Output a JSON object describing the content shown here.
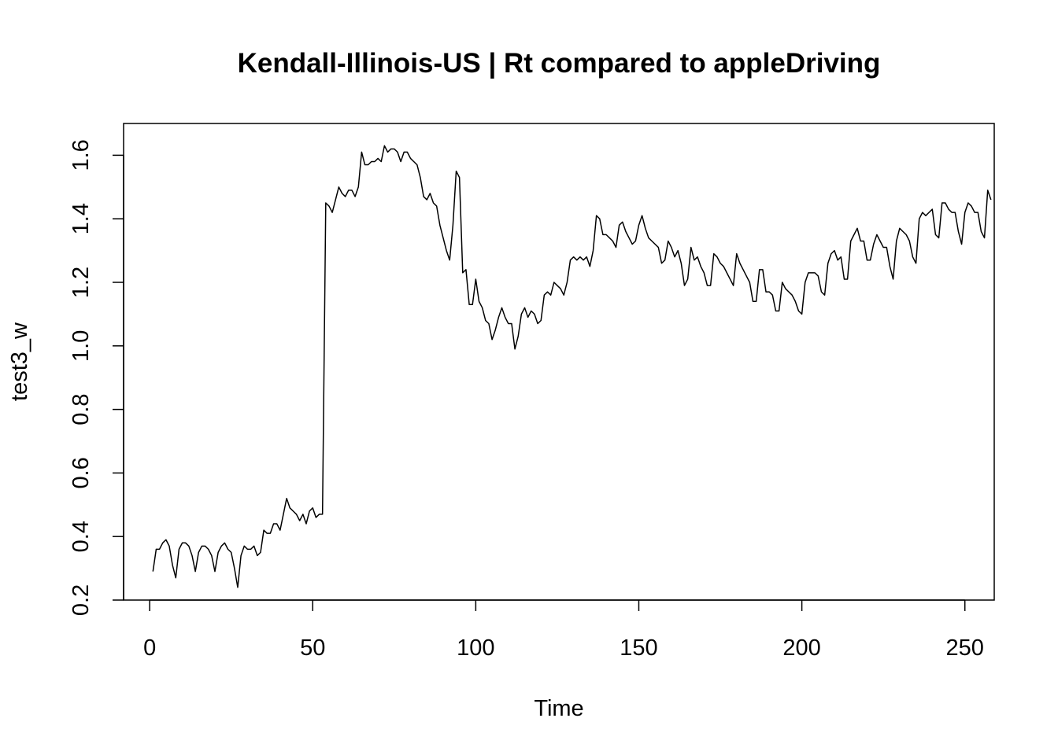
{
  "chart_data": {
    "type": "line",
    "title": "Kendall-Illinois-US | Rt compared to appleDriving",
    "xlabel": "Time",
    "ylabel": "test3_w",
    "xlim": [
      -8,
      259
    ],
    "ylim": [
      0.2,
      1.7
    ],
    "x_ticks": [
      0,
      50,
      100,
      150,
      200,
      250
    ],
    "x_tick_labels": [
      "0",
      "50",
      "100",
      "150",
      "200",
      "250"
    ],
    "y_ticks": [
      0.2,
      0.4,
      0.6,
      0.8,
      1.0,
      1.2,
      1.4,
      1.6
    ],
    "y_tick_labels": [
      "0.2",
      "0.4",
      "0.6",
      "0.8",
      "1.0",
      "1.2",
      "1.4",
      "1.6"
    ],
    "grid": false,
    "series": [
      {
        "x_start": 1,
        "values": [
          0.29,
          0.36,
          0.36,
          0.38,
          0.39,
          0.37,
          0.31,
          0.27,
          0.36,
          0.38,
          0.38,
          0.37,
          0.34,
          0.29,
          0.35,
          0.37,
          0.37,
          0.36,
          0.34,
          0.29,
          0.35,
          0.37,
          0.38,
          0.36,
          0.35,
          0.3,
          0.24,
          0.34,
          0.37,
          0.36,
          0.36,
          0.37,
          0.34,
          0.35,
          0.42,
          0.41,
          0.41,
          0.44,
          0.44,
          0.42,
          0.47,
          0.52,
          0.49,
          0.48,
          0.47,
          0.45,
          0.47,
          0.44,
          0.48,
          0.49,
          0.46,
          0.47,
          0.47,
          1.45,
          1.44,
          1.42,
          1.46,
          1.5,
          1.48,
          1.47,
          1.49,
          1.49,
          1.47,
          1.5,
          1.61,
          1.57,
          1.57,
          1.58,
          1.58,
          1.59,
          1.58,
          1.63,
          1.61,
          1.62,
          1.62,
          1.61,
          1.58,
          1.61,
          1.61,
          1.59,
          1.58,
          1.57,
          1.53,
          1.47,
          1.46,
          1.48,
          1.45,
          1.44,
          1.38,
          1.34,
          1.3,
          1.27,
          1.38,
          1.55,
          1.53,
          1.23,
          1.24,
          1.13,
          1.13,
          1.21,
          1.14,
          1.12,
          1.08,
          1.07,
          1.02,
          1.05,
          1.09,
          1.12,
          1.09,
          1.07,
          1.07,
          0.99,
          1.03,
          1.1,
          1.12,
          1.09,
          1.11,
          1.1,
          1.07,
          1.08,
          1.16,
          1.17,
          1.16,
          1.2,
          1.19,
          1.18,
          1.16,
          1.2,
          1.27,
          1.28,
          1.27,
          1.28,
          1.27,
          1.28,
          1.25,
          1.3,
          1.41,
          1.4,
          1.35,
          1.35,
          1.34,
          1.33,
          1.31,
          1.38,
          1.39,
          1.36,
          1.34,
          1.32,
          1.33,
          1.38,
          1.41,
          1.37,
          1.34,
          1.33,
          1.32,
          1.31,
          1.26,
          1.27,
          1.33,
          1.31,
          1.28,
          1.3,
          1.26,
          1.19,
          1.21,
          1.31,
          1.27,
          1.28,
          1.25,
          1.23,
          1.19,
          1.19,
          1.29,
          1.28,
          1.26,
          1.25,
          1.23,
          1.21,
          1.19,
          1.29,
          1.26,
          1.24,
          1.22,
          1.2,
          1.14,
          1.14,
          1.24,
          1.24,
          1.17,
          1.17,
          1.16,
          1.11,
          1.11,
          1.2,
          1.18,
          1.17,
          1.16,
          1.14,
          1.11,
          1.1,
          1.2,
          1.23,
          1.23,
          1.23,
          1.22,
          1.17,
          1.16,
          1.26,
          1.29,
          1.3,
          1.27,
          1.28,
          1.21,
          1.21,
          1.33,
          1.35,
          1.37,
          1.33,
          1.33,
          1.27,
          1.27,
          1.32,
          1.35,
          1.33,
          1.31,
          1.31,
          1.25,
          1.21,
          1.33,
          1.37,
          1.36,
          1.35,
          1.33,
          1.28,
          1.26,
          1.4,
          1.42,
          1.41,
          1.42,
          1.43,
          1.35,
          1.34,
          1.45,
          1.45,
          1.43,
          1.42,
          1.42,
          1.36,
          1.32,
          1.42,
          1.45,
          1.44,
          1.42,
          1.42,
          1.36,
          1.34,
          1.49,
          1.46
        ]
      }
    ]
  }
}
